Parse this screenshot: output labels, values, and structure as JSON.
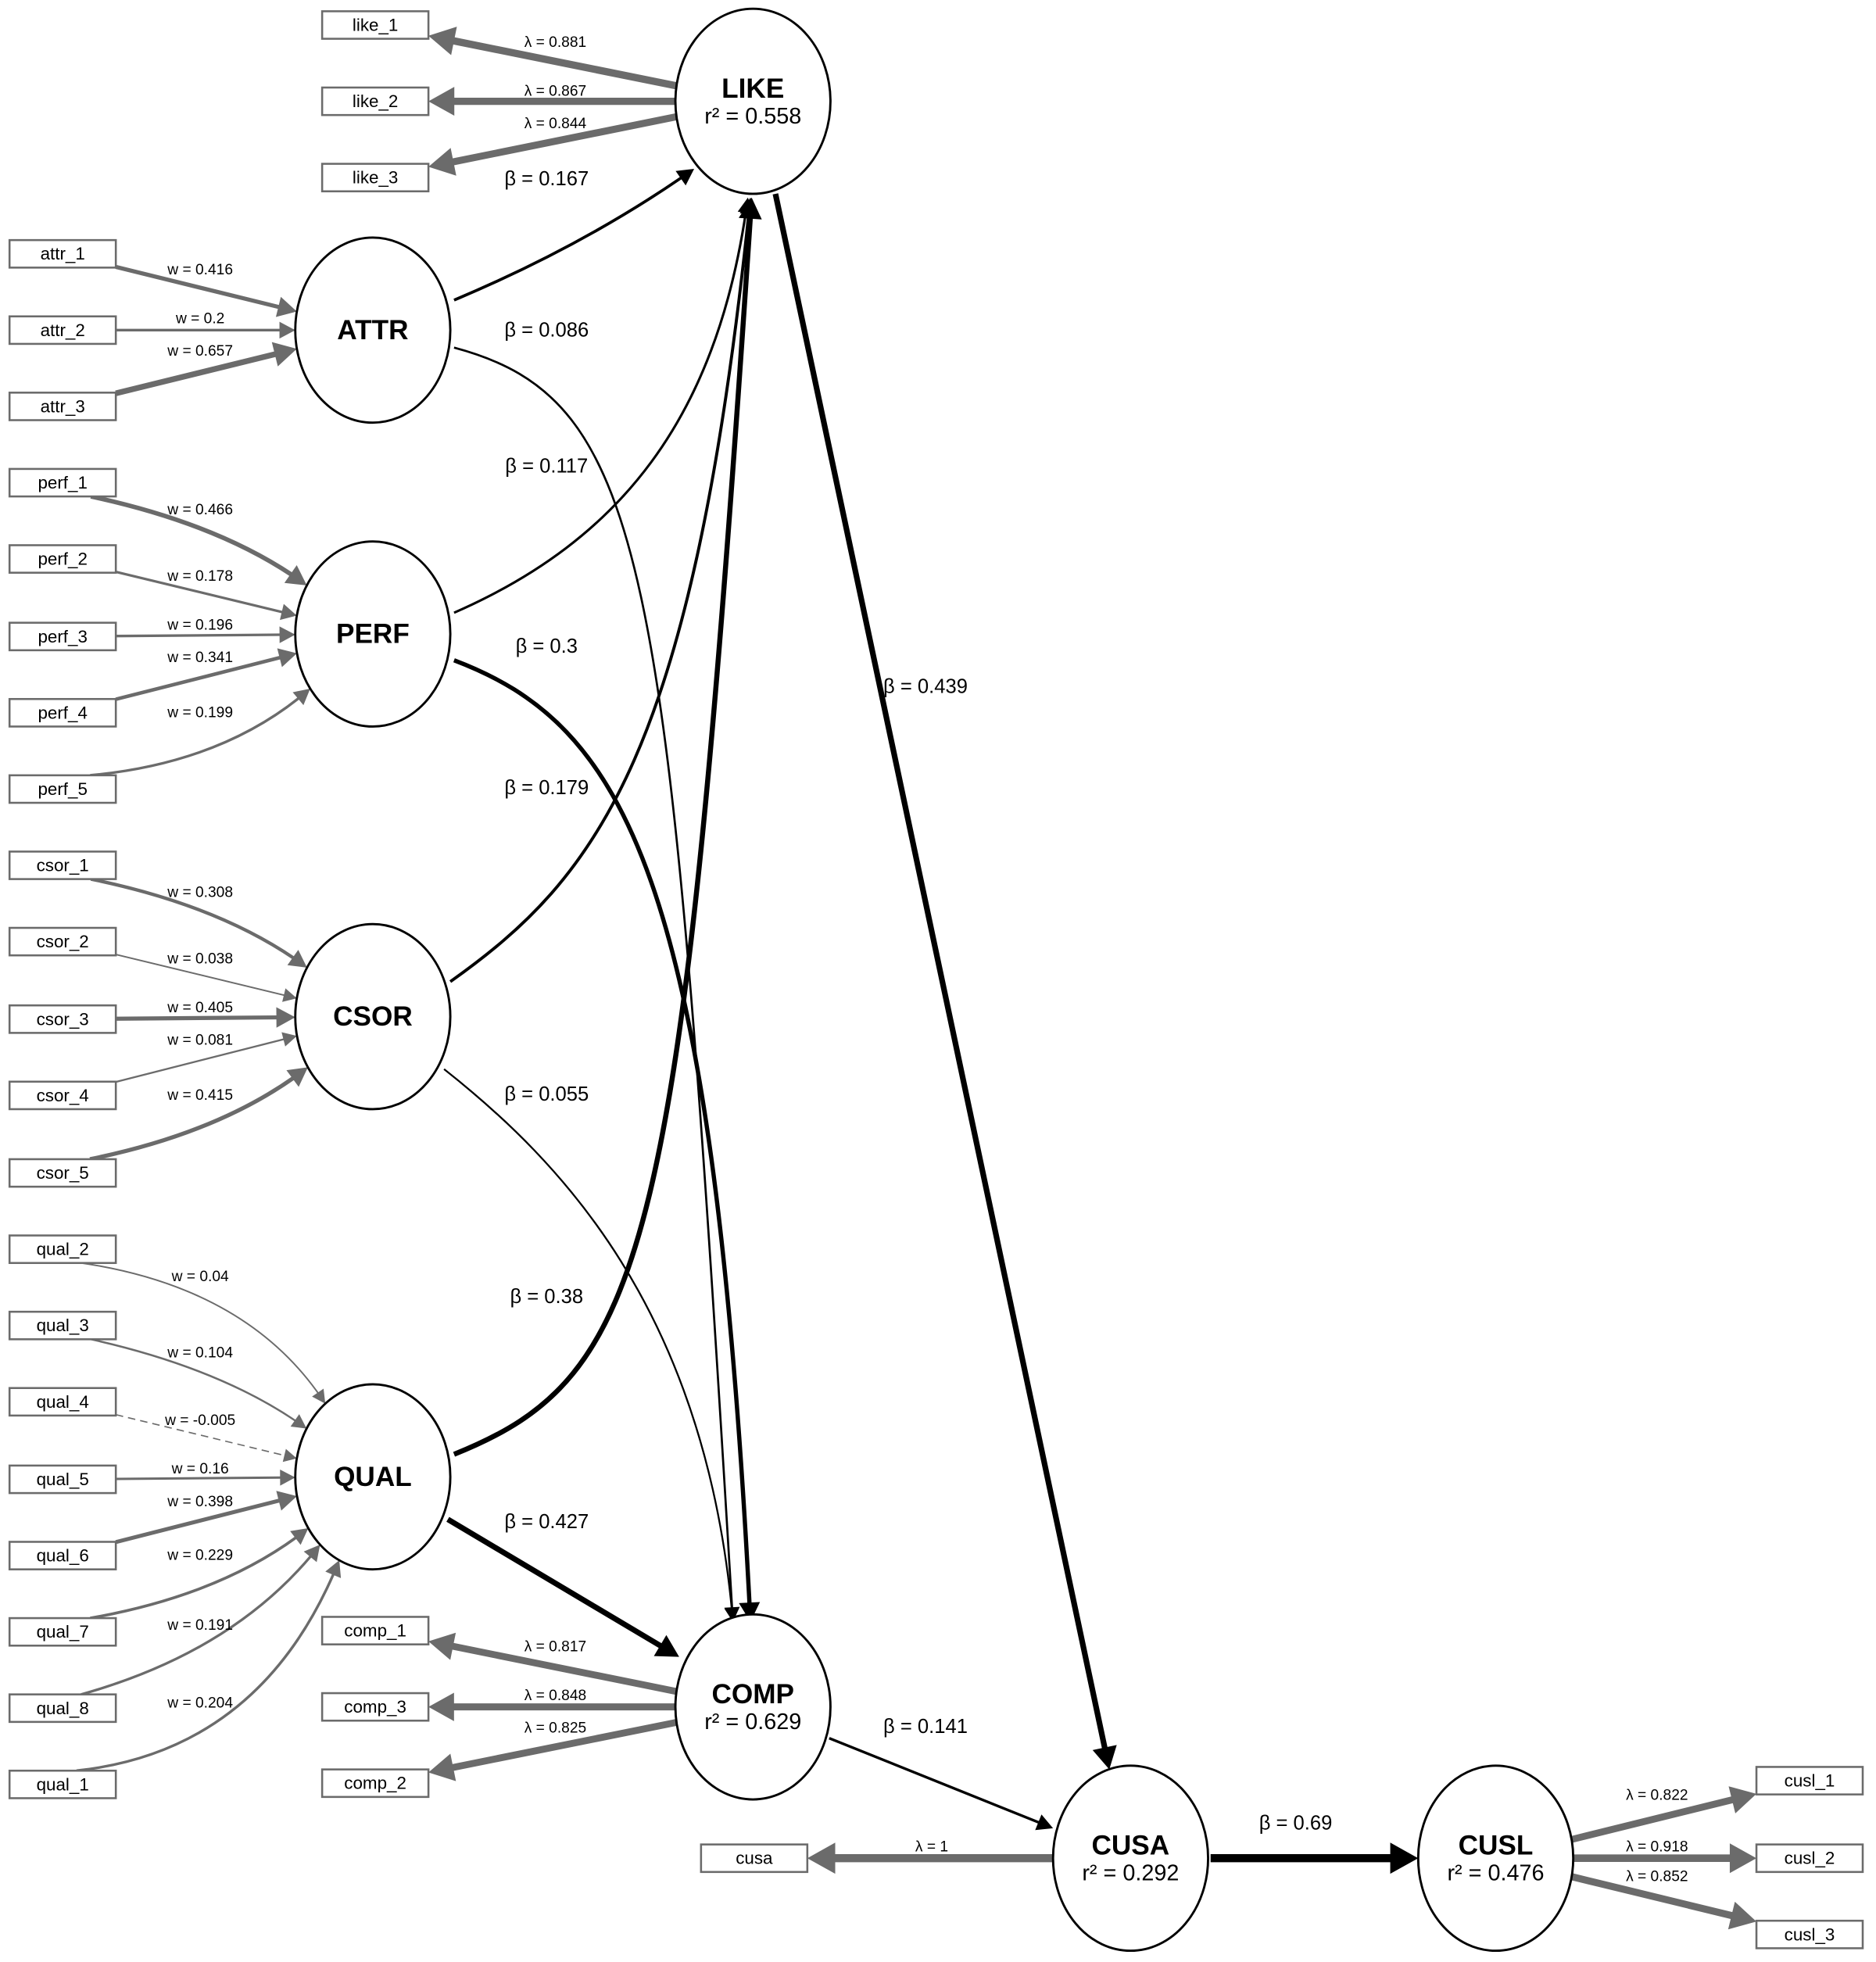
{
  "constructs": [
    {
      "id": "LIKE",
      "name": "LIKE",
      "r2": "r² = 0.558"
    },
    {
      "id": "ATTR",
      "name": "ATTR",
      "r2": ""
    },
    {
      "id": "PERF",
      "name": "PERF",
      "r2": ""
    },
    {
      "id": "CSOR",
      "name": "CSOR",
      "r2": ""
    },
    {
      "id": "QUAL",
      "name": "QUAL",
      "r2": ""
    },
    {
      "id": "COMP",
      "name": "COMP",
      "r2": "r² = 0.629"
    },
    {
      "id": "CUSA",
      "name": "CUSA",
      "r2": "r² = 0.292"
    },
    {
      "id": "CUSL",
      "name": "CUSL",
      "r2": "r² = 0.476"
    }
  ],
  "indicators": [
    "like_1",
    "like_2",
    "like_3",
    "attr_1",
    "attr_2",
    "attr_3",
    "perf_1",
    "perf_2",
    "perf_3",
    "perf_4",
    "perf_5",
    "csor_1",
    "csor_2",
    "csor_3",
    "csor_4",
    "csor_5",
    "qual_2",
    "qual_3",
    "qual_4",
    "qual_5",
    "qual_6",
    "qual_7",
    "qual_8",
    "qual_1",
    "comp_1",
    "comp_3",
    "comp_2",
    "cusa",
    "cusl_1",
    "cusl_2",
    "cusl_3"
  ],
  "measurement": [
    {
      "construct": "LIKE",
      "indicator": "like_1",
      "type": "reflective",
      "value": 0.881,
      "label": "λ = 0.881"
    },
    {
      "construct": "LIKE",
      "indicator": "like_2",
      "type": "reflective",
      "value": 0.867,
      "label": "λ = 0.867"
    },
    {
      "construct": "LIKE",
      "indicator": "like_3",
      "type": "reflective",
      "value": 0.844,
      "label": "λ = 0.844"
    },
    {
      "construct": "ATTR",
      "indicator": "attr_1",
      "type": "formative",
      "value": 0.416,
      "label": "w = 0.416"
    },
    {
      "construct": "ATTR",
      "indicator": "attr_2",
      "type": "formative",
      "value": 0.2,
      "label": "w = 0.2"
    },
    {
      "construct": "ATTR",
      "indicator": "attr_3",
      "type": "formative",
      "value": 0.657,
      "label": "w = 0.657"
    },
    {
      "construct": "PERF",
      "indicator": "perf_1",
      "type": "formative",
      "value": 0.466,
      "label": "w = 0.466"
    },
    {
      "construct": "PERF",
      "indicator": "perf_2",
      "type": "formative",
      "value": 0.178,
      "label": "w = 0.178"
    },
    {
      "construct": "PERF",
      "indicator": "perf_3",
      "type": "formative",
      "value": 0.196,
      "label": "w = 0.196"
    },
    {
      "construct": "PERF",
      "indicator": "perf_4",
      "type": "formative",
      "value": 0.341,
      "label": "w = 0.341"
    },
    {
      "construct": "PERF",
      "indicator": "perf_5",
      "type": "formative",
      "value": 0.199,
      "label": "w = 0.199"
    },
    {
      "construct": "CSOR",
      "indicator": "csor_1",
      "type": "formative",
      "value": 0.308,
      "label": "w = 0.308"
    },
    {
      "construct": "CSOR",
      "indicator": "csor_2",
      "type": "formative",
      "value": 0.038,
      "label": "w = 0.038"
    },
    {
      "construct": "CSOR",
      "indicator": "csor_3",
      "type": "formative",
      "value": 0.405,
      "label": "w = 0.405"
    },
    {
      "construct": "CSOR",
      "indicator": "csor_4",
      "type": "formative",
      "value": 0.081,
      "label": "w = 0.081"
    },
    {
      "construct": "CSOR",
      "indicator": "csor_5",
      "type": "formative",
      "value": 0.415,
      "label": "w = 0.415"
    },
    {
      "construct": "QUAL",
      "indicator": "qual_2",
      "type": "formative",
      "value": 0.04,
      "label": "w = 0.04"
    },
    {
      "construct": "QUAL",
      "indicator": "qual_3",
      "type": "formative",
      "value": 0.104,
      "label": "w = 0.104"
    },
    {
      "construct": "QUAL",
      "indicator": "qual_4",
      "type": "formative",
      "value": -0.005,
      "label": "w = -0.005"
    },
    {
      "construct": "QUAL",
      "indicator": "qual_5",
      "type": "formative",
      "value": 0.16,
      "label": "w = 0.16"
    },
    {
      "construct": "QUAL",
      "indicator": "qual_6",
      "type": "formative",
      "value": 0.398,
      "label": "w = 0.398"
    },
    {
      "construct": "QUAL",
      "indicator": "qual_7",
      "type": "formative",
      "value": 0.229,
      "label": "w = 0.229"
    },
    {
      "construct": "QUAL",
      "indicator": "qual_8",
      "type": "formative",
      "value": 0.191,
      "label": "w = 0.191"
    },
    {
      "construct": "QUAL",
      "indicator": "qual_1",
      "type": "formative",
      "value": 0.204,
      "label": "w = 0.204"
    },
    {
      "construct": "COMP",
      "indicator": "comp_1",
      "type": "reflective",
      "value": 0.817,
      "label": "λ = 0.817"
    },
    {
      "construct": "COMP",
      "indicator": "comp_3",
      "type": "reflective",
      "value": 0.848,
      "label": "λ = 0.848"
    },
    {
      "construct": "COMP",
      "indicator": "comp_2",
      "type": "reflective",
      "value": 0.825,
      "label": "λ = 0.825"
    },
    {
      "construct": "CUSA",
      "indicator": "cusa",
      "type": "reflective",
      "value": 1,
      "label": "λ = 1"
    },
    {
      "construct": "CUSL",
      "indicator": "cusl_1",
      "type": "reflective",
      "value": 0.822,
      "label": "λ = 0.822"
    },
    {
      "construct": "CUSL",
      "indicator": "cusl_2",
      "type": "reflective",
      "value": 0.918,
      "label": "λ = 0.918"
    },
    {
      "construct": "CUSL",
      "indicator": "cusl_3",
      "type": "reflective",
      "value": 0.852,
      "label": "λ = 0.852"
    }
  ],
  "paths": [
    {
      "from": "ATTR",
      "to": "LIKE",
      "value": 0.167,
      "label": "β = 0.167"
    },
    {
      "from": "ATTR",
      "to": "COMP",
      "value": 0.086,
      "label": "β = 0.086"
    },
    {
      "from": "PERF",
      "to": "LIKE",
      "value": 0.117,
      "label": "β = 0.117"
    },
    {
      "from": "PERF",
      "to": "COMP",
      "value": 0.3,
      "label": "β = 0.3"
    },
    {
      "from": "CSOR",
      "to": "LIKE",
      "value": 0.179,
      "label": "β = 0.179"
    },
    {
      "from": "CSOR",
      "to": "COMP",
      "value": 0.055,
      "label": "β = 0.055"
    },
    {
      "from": "QUAL",
      "to": "LIKE",
      "value": 0.38,
      "label": "β = 0.38"
    },
    {
      "from": "QUAL",
      "to": "COMP",
      "value": 0.427,
      "label": "β = 0.427"
    },
    {
      "from": "LIKE",
      "to": "CUSA",
      "value": 0.439,
      "label": "β = 0.439"
    },
    {
      "from": "COMP",
      "to": "CUSA",
      "value": 0.141,
      "label": "β = 0.141"
    },
    {
      "from": "CUSA",
      "to": "CUSL",
      "value": 0.69,
      "label": "β = 0.69"
    }
  ],
  "colors": {
    "measurement_edge": "#6b6b6b",
    "structural_edge": "#000000",
    "node_stroke": "#000000"
  }
}
